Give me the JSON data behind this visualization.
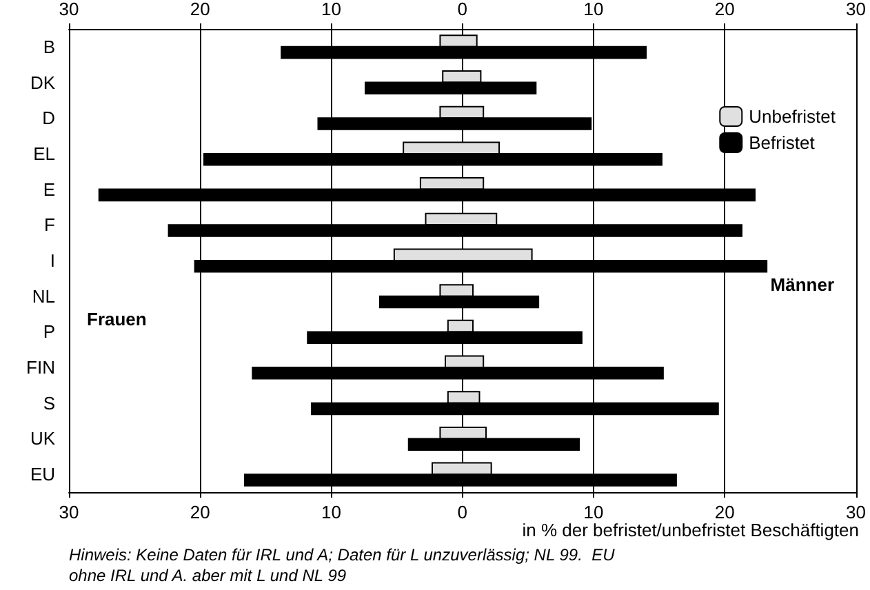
{
  "chart_data": {
    "type": "bar",
    "orientation": "horizontal",
    "xlabel": "in % der befristet/unbefristet Beschäftigten",
    "categories": [
      "B",
      "DK",
      "D",
      "EL",
      "E",
      "F",
      "I",
      "NL",
      "P",
      "FIN",
      "S",
      "UK",
      "EU"
    ],
    "series": [
      {
        "name": "Unbefristet",
        "color": "#e0e0e0",
        "base": [
          -1.7,
          -1.5,
          -1.7,
          -4.5,
          -3.2,
          -2.8,
          -5.2,
          -1.7,
          -1.1,
          -1.3,
          -1.1,
          -1.7,
          -2.3
        ],
        "values": [
          2.8,
          2.9,
          3.3,
          7.3,
          4.8,
          5.4,
          10.5,
          2.5,
          1.9,
          2.9,
          2.4,
          3.5,
          4.5
        ]
      },
      {
        "name": "Befristet",
        "color": "#000000",
        "base": [
          -13.8,
          -7.4,
          -11.0,
          -19.7,
          -27.7,
          -22.4,
          -20.4,
          -6.3,
          -11.8,
          -16.0,
          -11.5,
          -4.1,
          -16.6
        ],
        "values": [
          27.8,
          13.0,
          20.8,
          34.9,
          50.0,
          43.7,
          43.6,
          12.1,
          20.9,
          31.3,
          31.0,
          13.0,
          32.9
        ]
      }
    ],
    "xlim": [
      -30,
      30
    ],
    "xticks": [
      {
        "value": -30,
        "label": "30"
      },
      {
        "value": -20,
        "label": "20"
      },
      {
        "value": -10,
        "label": "10"
      },
      0,
      {
        "value": 10,
        "label": "10"
      },
      {
        "value": 20,
        "label": "20"
      },
      {
        "value": 30,
        "label": "30"
      }
    ],
    "x2lim": [
      -30,
      30
    ],
    "x2ticks": [
      {
        "value": -30,
        "label": "30"
      },
      {
        "value": -20,
        "label": "20"
      },
      {
        "value": -10,
        "label": "10"
      },
      0,
      {
        "value": 10,
        "label": "10"
      },
      {
        "value": 20,
        "label": "20"
      },
      {
        "value": 30,
        "label": "30"
      }
    ],
    "grid": "x",
    "legend": "right",
    "annotations": [
      "Frauen",
      "Männer",
      "Hinweis: Keine Daten für IRL und A; Daten für L unzuverlässig; NL 99.  EU\nohne IRL und A. aber mit L und NL 99"
    ]
  }
}
